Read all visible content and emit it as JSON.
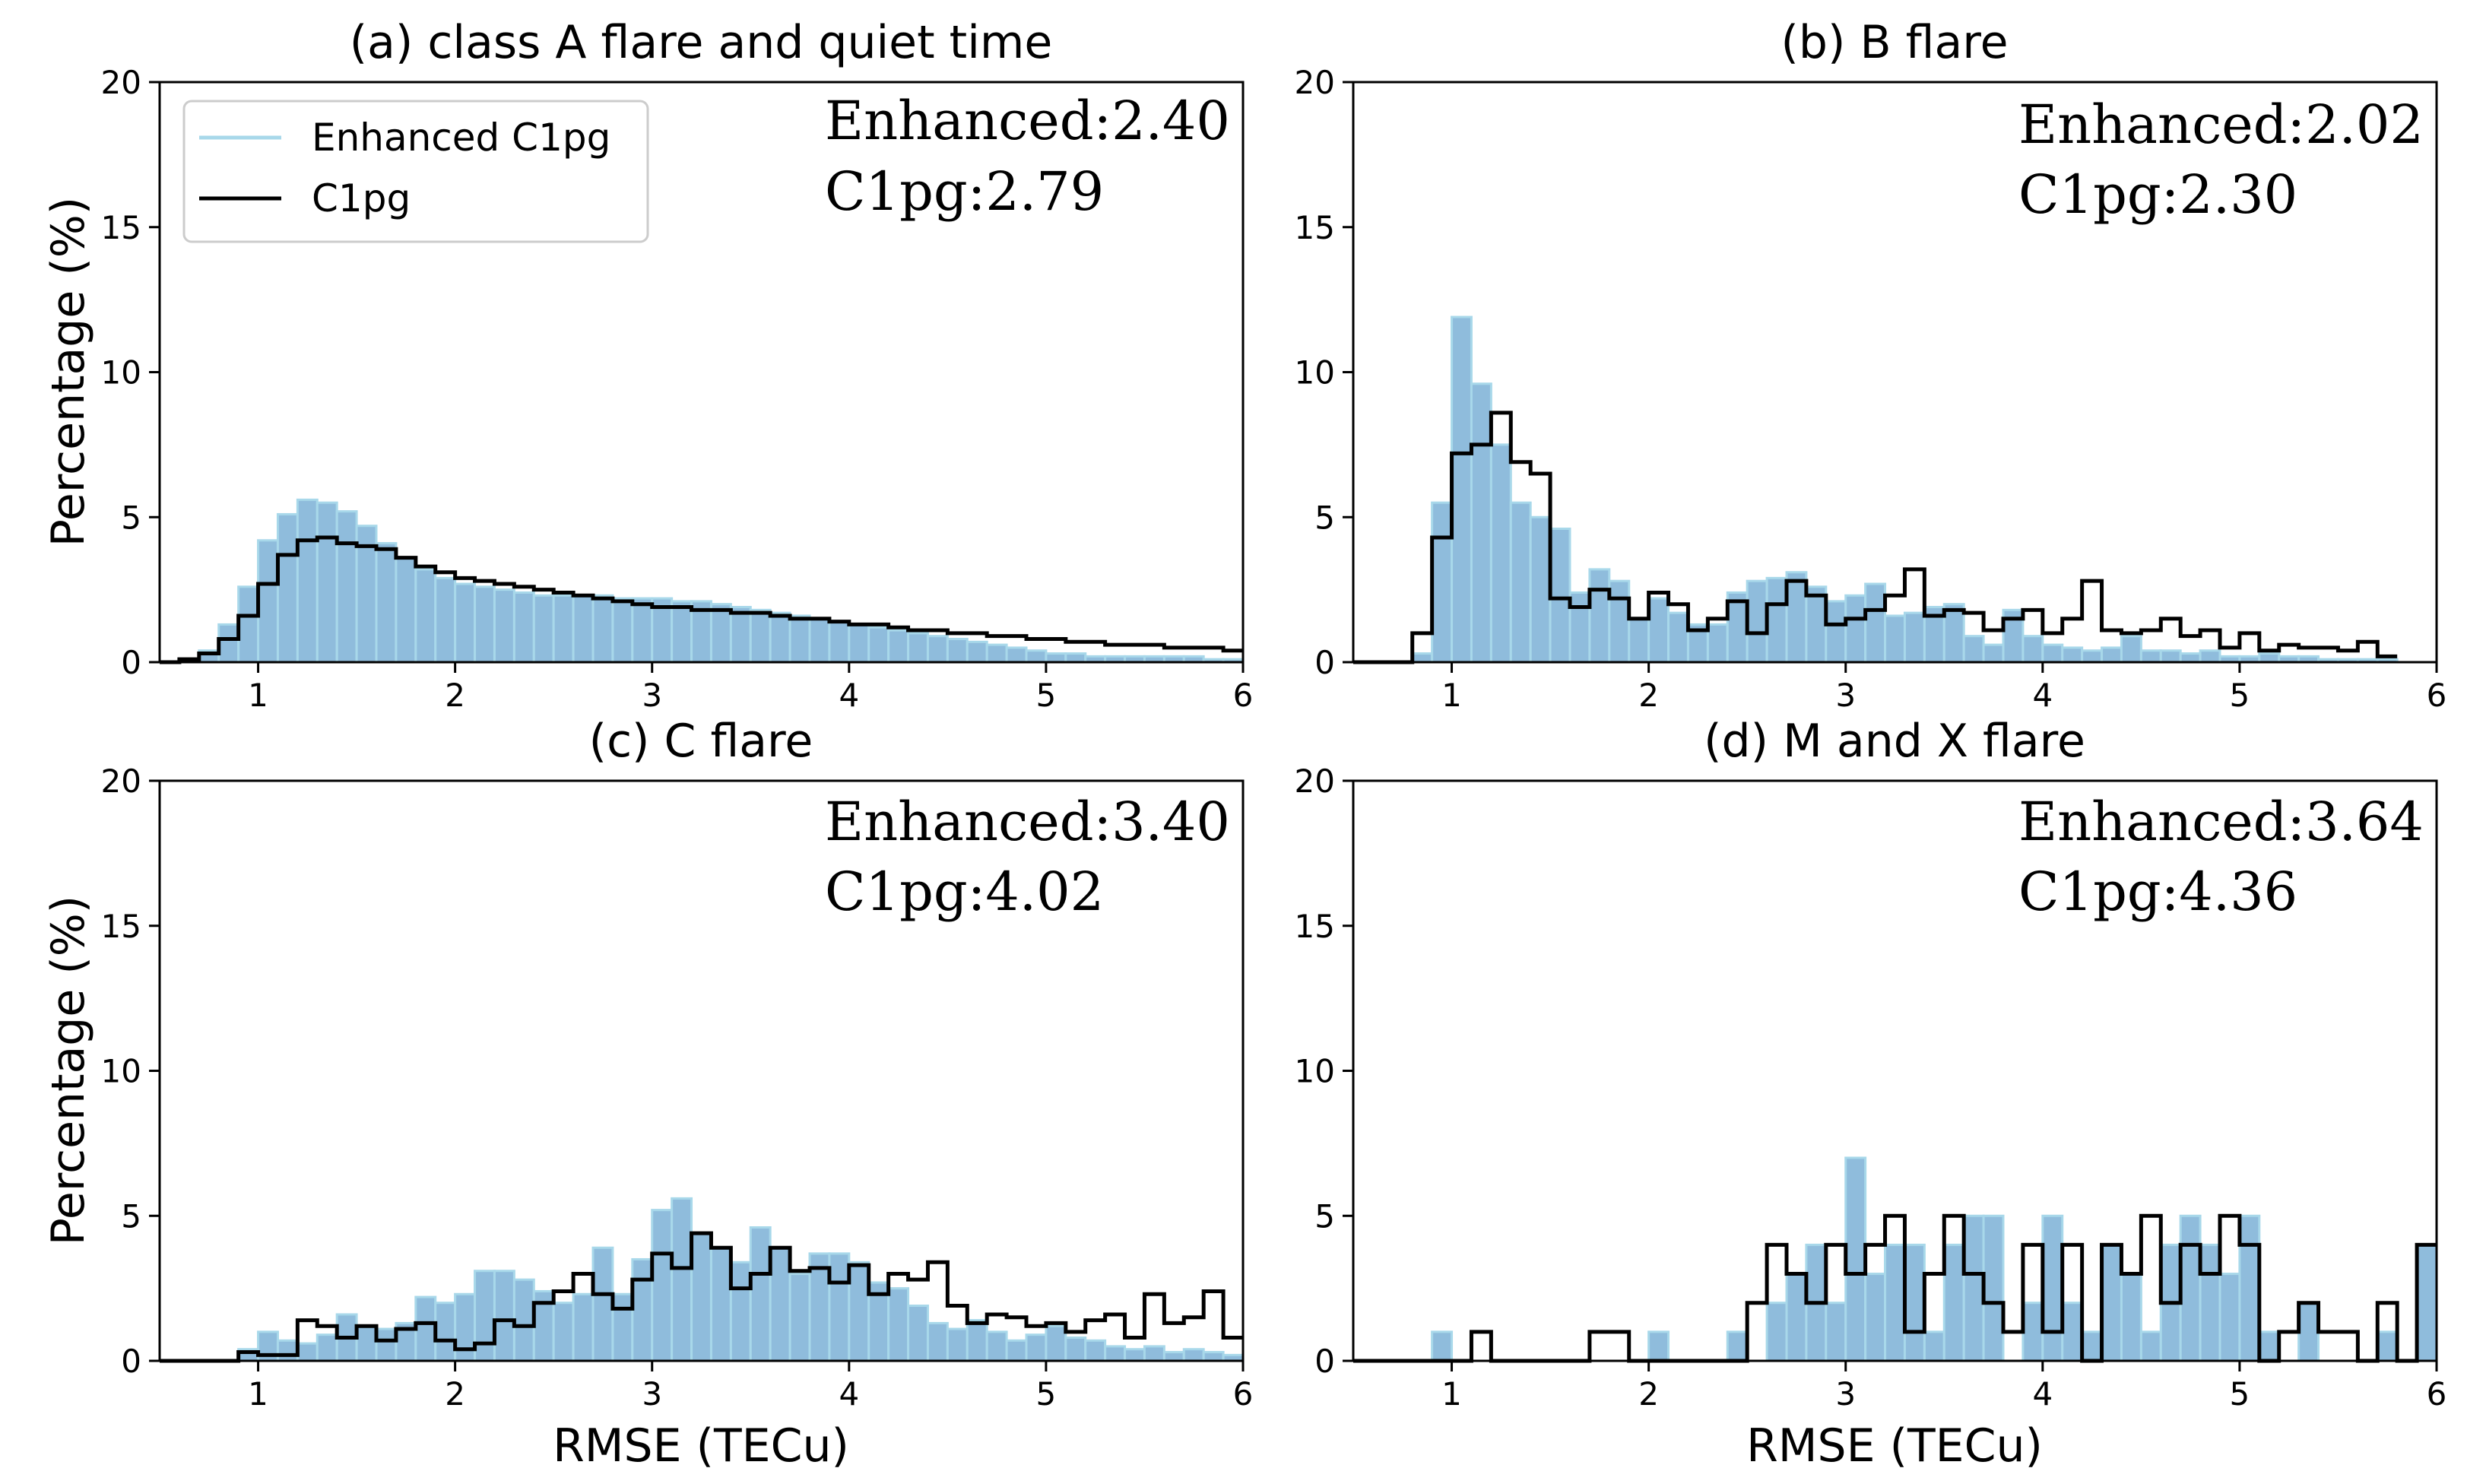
{
  "colors": {
    "enhanced_fill": "#8fbcdc",
    "enhanced_line": "#a8d8ea",
    "c1pg_line": "#000000",
    "axis": "#000000"
  },
  "legend": {
    "entries": [
      {
        "label": "Enhanced C1pg",
        "color": "#a8d8ea"
      },
      {
        "label": "C1pg",
        "color": "#000000"
      }
    ]
  },
  "chart_data": [
    {
      "type": "bar",
      "title": "(a) class A flare and quiet time",
      "xlabel": "",
      "ylabel": "Percentage (%)",
      "xlim": [
        0.5,
        6
      ],
      "ylim": [
        0,
        20
      ],
      "xticks": [
        "1",
        "2",
        "3",
        "4",
        "5",
        "6"
      ],
      "yticks": [
        "0",
        "5",
        "10",
        "15",
        "20"
      ],
      "bin_width": 0.1,
      "bin_start": 0.6,
      "stats": [
        "Enhanced:2.40",
        "C1pg:2.79"
      ],
      "series": [
        {
          "name": "Enhanced C1pg",
          "values": [
            0.1,
            0.4,
            1.3,
            2.6,
            4.2,
            5.1,
            5.6,
            5.5,
            5.2,
            4.7,
            4.1,
            3.6,
            3.2,
            2.9,
            2.7,
            2.6,
            2.5,
            2.4,
            2.3,
            2.3,
            2.3,
            2.3,
            2.2,
            2.2,
            2.2,
            2.1,
            2.1,
            2.0,
            1.9,
            1.8,
            1.7,
            1.6,
            1.5,
            1.4,
            1.3,
            1.2,
            1.1,
            1.0,
            0.9,
            0.8,
            0.7,
            0.6,
            0.5,
            0.4,
            0.3,
            0.3,
            0.2,
            0.2,
            0.2,
            0.2,
            0.2,
            0.2,
            0.1,
            0.1
          ]
        },
        {
          "name": "C1pg",
          "values": [
            0.1,
            0.3,
            0.8,
            1.6,
            2.7,
            3.7,
            4.2,
            4.3,
            4.1,
            4.0,
            3.9,
            3.6,
            3.3,
            3.1,
            2.9,
            2.8,
            2.7,
            2.6,
            2.5,
            2.4,
            2.3,
            2.2,
            2.1,
            2.0,
            1.9,
            1.9,
            1.8,
            1.8,
            1.7,
            1.7,
            1.6,
            1.5,
            1.5,
            1.4,
            1.3,
            1.3,
            1.2,
            1.1,
            1.1,
            1.0,
            1.0,
            0.9,
            0.9,
            0.8,
            0.8,
            0.7,
            0.7,
            0.6,
            0.6,
            0.6,
            0.5,
            0.5,
            0.5,
            0.4
          ]
        }
      ]
    },
    {
      "type": "bar",
      "title": "(b) B flare",
      "xlabel": "",
      "ylabel": "",
      "xlim": [
        0.5,
        6
      ],
      "ylim": [
        0,
        20
      ],
      "xticks": [
        "1",
        "2",
        "3",
        "4",
        "5",
        "6"
      ],
      "yticks": [
        "0",
        "5",
        "10",
        "15",
        "20"
      ],
      "bin_width": 0.1,
      "bin_start": 0.8,
      "stats": [
        "Enhanced:2.02",
        "C1pg:2.30"
      ],
      "series": [
        {
          "name": "Enhanced C1pg",
          "values": [
            0.3,
            5.5,
            11.9,
            9.6,
            7.5,
            5.5,
            5.0,
            4.6,
            2.4,
            3.2,
            2.8,
            1.5,
            2.2,
            1.7,
            1.3,
            1.3,
            2.4,
            2.8,
            2.9,
            3.1,
            2.6,
            2.1,
            2.3,
            2.7,
            1.6,
            1.7,
            1.9,
            2.0,
            0.9,
            0.6,
            1.8,
            0.9,
            0.6,
            0.5,
            0.4,
            0.5,
            0.9,
            0.4,
            0.4,
            0.3,
            0.4,
            0.2,
            0.2,
            0.3,
            0.2,
            0.2,
            0.1,
            0.1,
            0.1,
            0.1
          ]
        },
        {
          "name": "C1pg",
          "values": [
            1.0,
            4.3,
            7.2,
            7.5,
            8.6,
            6.9,
            6.5,
            2.2,
            1.9,
            2.5,
            2.2,
            1.5,
            2.4,
            2.0,
            1.1,
            1.5,
            2.1,
            1.0,
            2.0,
            2.8,
            2.3,
            1.3,
            1.5,
            1.8,
            2.3,
            3.2,
            1.6,
            1.8,
            1.7,
            1.1,
            1.5,
            1.8,
            1.0,
            1.5,
            2.8,
            1.1,
            1.0,
            1.1,
            1.5,
            0.9,
            1.1,
            0.5,
            1.0,
            0.4,
            0.6,
            0.5,
            0.5,
            0.4,
            0.7,
            0.2
          ]
        }
      ]
    },
    {
      "type": "bar",
      "title": "(c) C flare",
      "xlabel": "RMSE (TECu)",
      "ylabel": "Percentage (%)",
      "xlim": [
        0.5,
        6
      ],
      "ylim": [
        0,
        20
      ],
      "xticks": [
        "1",
        "2",
        "3",
        "4",
        "5",
        "6"
      ],
      "yticks": [
        "0",
        "5",
        "10",
        "15",
        "20"
      ],
      "bin_width": 0.1,
      "bin_start": 0.9,
      "stats": [
        "Enhanced:3.40",
        "C1pg:4.02"
      ],
      "series": [
        {
          "name": "Enhanced C1pg",
          "values": [
            0.4,
            1.0,
            0.7,
            0.6,
            0.9,
            1.6,
            1.2,
            1.1,
            1.3,
            2.2,
            2.0,
            2.3,
            3.1,
            3.1,
            2.8,
            2.4,
            2.0,
            2.3,
            3.9,
            2.3,
            3.5,
            5.2,
            5.6,
            4.4,
            3.9,
            3.4,
            4.6,
            3.9,
            3.0,
            3.7,
            3.7,
            3.4,
            2.7,
            2.5,
            1.9,
            1.3,
            1.1,
            1.4,
            1.0,
            0.7,
            0.9,
            1.2,
            0.8,
            0.7,
            0.5,
            0.4,
            0.5,
            0.3,
            0.4,
            0.3,
            0.2,
            0.2
          ]
        },
        {
          "name": "C1pg",
          "values": [
            0.3,
            0.2,
            0.2,
            1.4,
            1.2,
            0.8,
            1.2,
            0.7,
            1.1,
            1.3,
            0.7,
            0.4,
            0.6,
            1.4,
            1.2,
            2.0,
            2.4,
            3.0,
            2.3,
            1.8,
            2.8,
            3.7,
            3.2,
            4.4,
            3.9,
            2.5,
            3.0,
            3.9,
            3.1,
            3.2,
            2.7,
            3.3,
            2.3,
            3.0,
            2.8,
            3.4,
            1.9,
            1.3,
            1.6,
            1.5,
            1.2,
            1.3,
            1.0,
            1.4,
            1.6,
            0.8,
            2.3,
            1.3,
            1.5,
            2.4,
            0.8,
            0.7
          ]
        }
      ]
    },
    {
      "type": "bar",
      "title": "(d) M and X flare",
      "xlabel": "RMSE (TECu)",
      "ylabel": "",
      "xlim": [
        0.5,
        6
      ],
      "ylim": [
        0,
        20
      ],
      "xticks": [
        "1",
        "2",
        "3",
        "4",
        "5",
        "6"
      ],
      "yticks": [
        "0",
        "5",
        "10",
        "15",
        "20"
      ],
      "bin_width": 0.1,
      "bin_start": 0.9,
      "stats": [
        "Enhanced:3.64",
        "C1pg:4.36"
      ],
      "series": [
        {
          "name": "Enhanced C1pg",
          "values": [
            1,
            0,
            0,
            0,
            0,
            0,
            0,
            0,
            0,
            0,
            0,
            1,
            0,
            0,
            0,
            1,
            0,
            2,
            3,
            4,
            2,
            7,
            3,
            4,
            4,
            1,
            4,
            5,
            5,
            0,
            2,
            5,
            2,
            1,
            4,
            3,
            1,
            4,
            5,
            4,
            3,
            5,
            1,
            0,
            2,
            0,
            0,
            0,
            1,
            0,
            4,
            1,
            0
          ]
        },
        {
          "name": "C1pg",
          "values": [
            0,
            0,
            1,
            0,
            0,
            0,
            0,
            0,
            1,
            1,
            0,
            0,
            0,
            0,
            0,
            0,
            2,
            4,
            3,
            2,
            4,
            3,
            4,
            5,
            1,
            3,
            5,
            3,
            2,
            1,
            4,
            1,
            4,
            0,
            4,
            3,
            5,
            2,
            4,
            3,
            5,
            4,
            0,
            1,
            2,
            1,
            1,
            0,
            2,
            0,
            4,
            1,
            0
          ]
        }
      ]
    }
  ]
}
